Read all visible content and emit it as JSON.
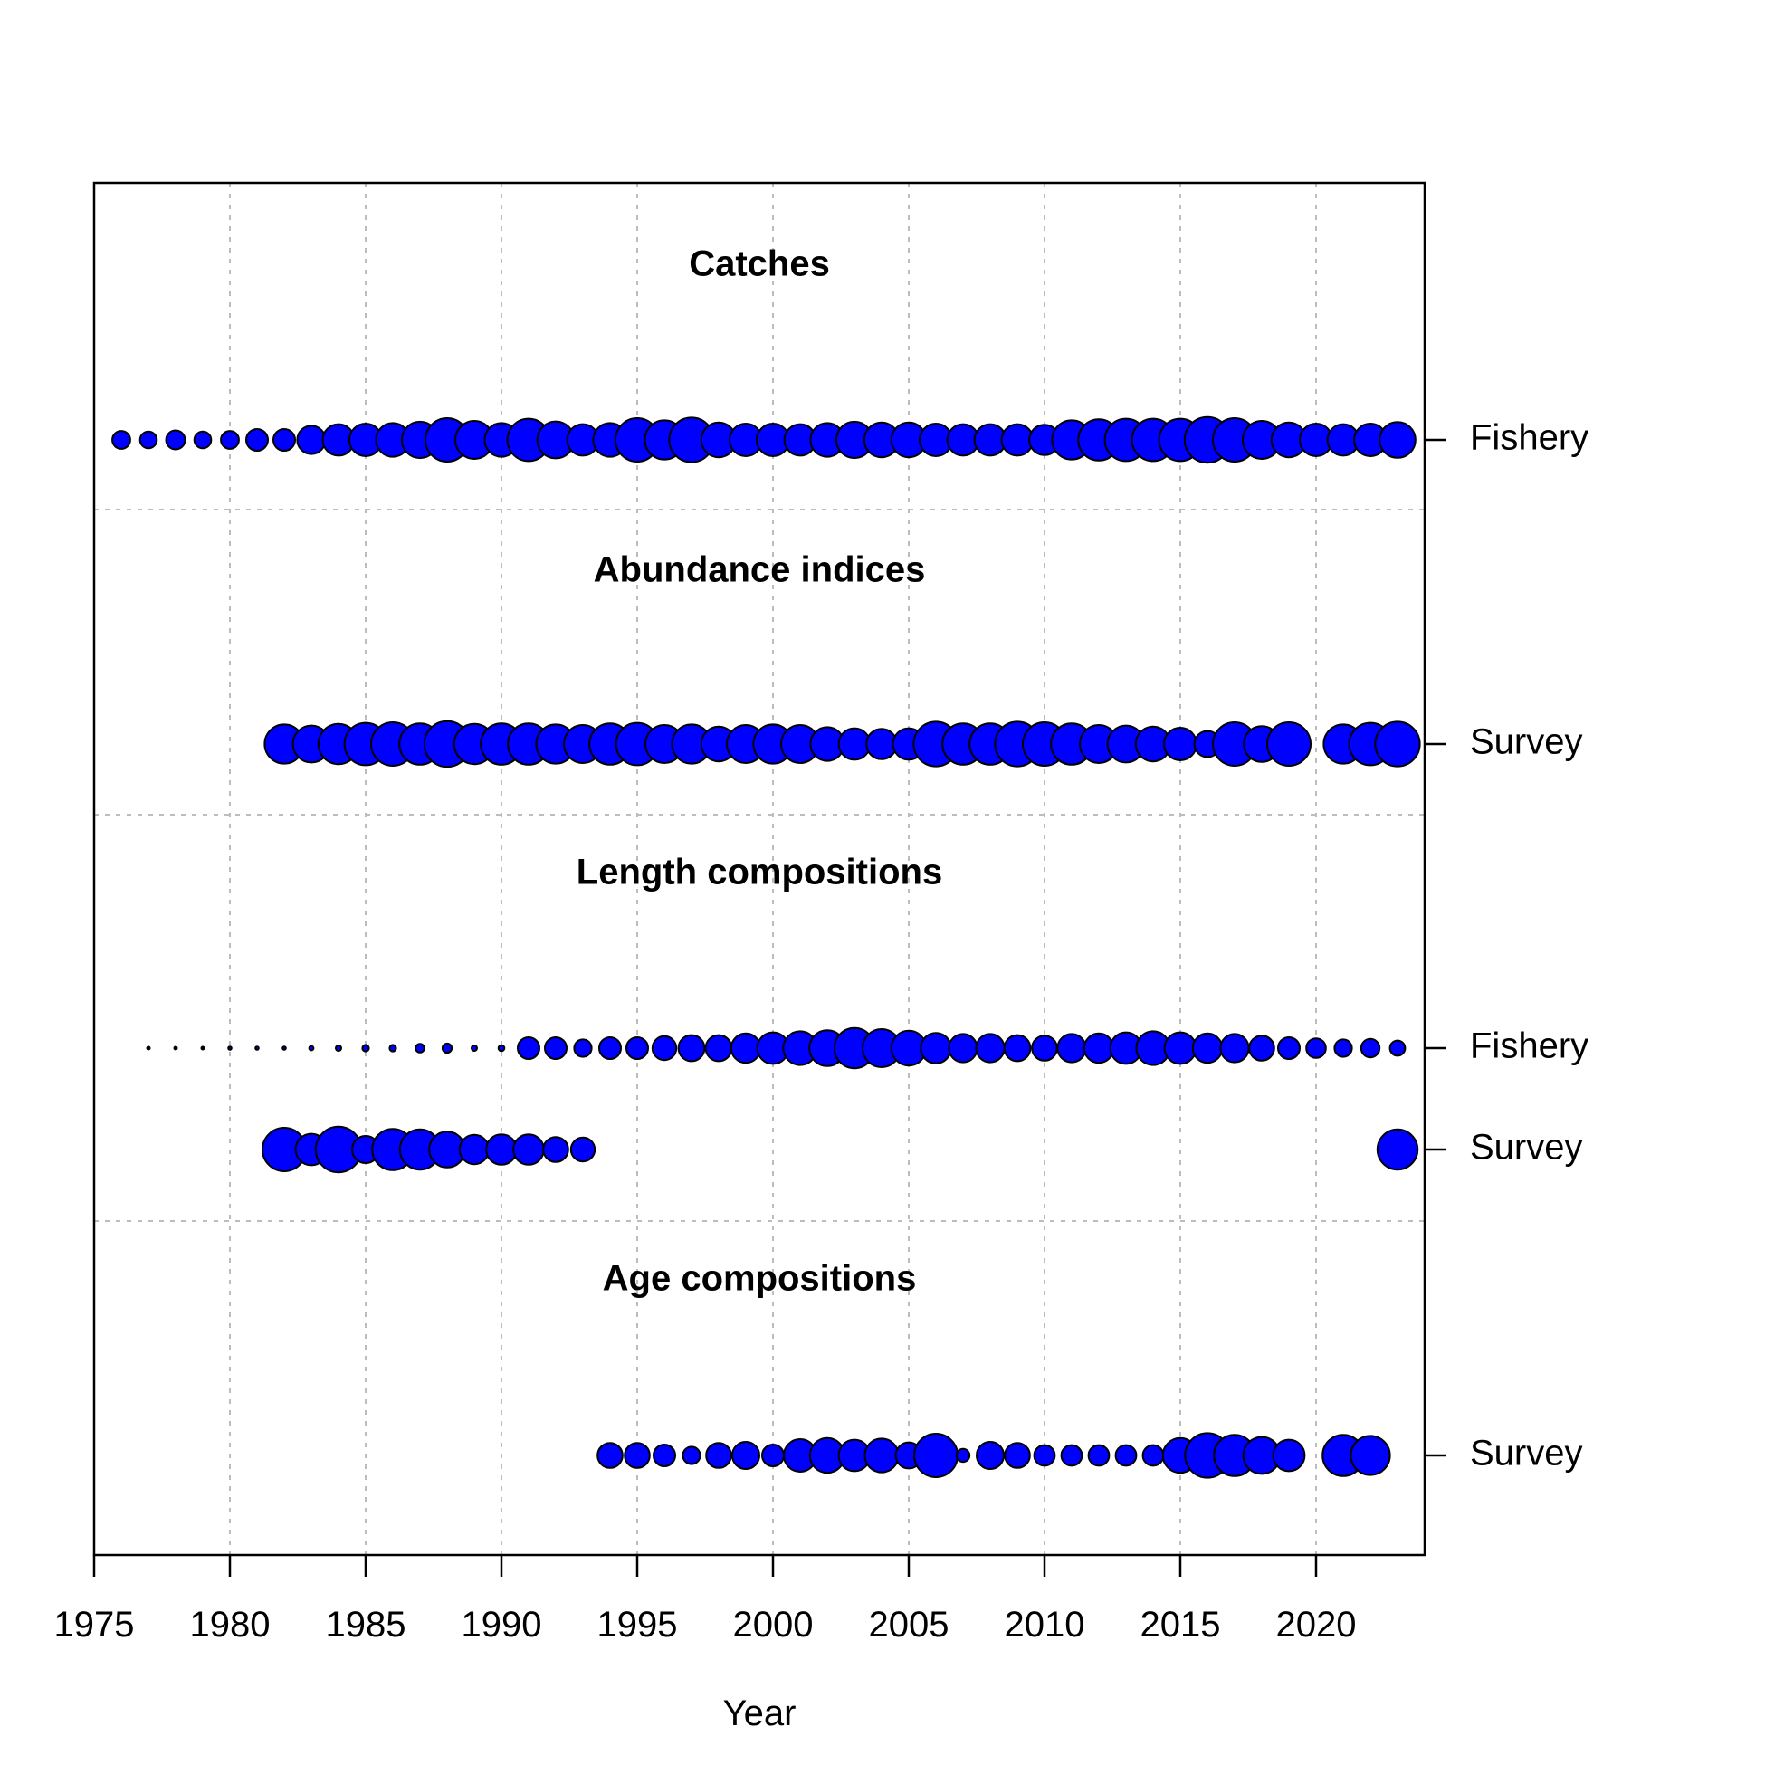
{
  "chart_data": {
    "type": "scatter",
    "xlabel": "Year",
    "xlim": [
      1975,
      2024
    ],
    "x_ticks": [
      1975,
      1980,
      1985,
      1990,
      1995,
      2000,
      2005,
      2010,
      2015,
      2020
    ],
    "grid": true,
    "bubble_color": "#0000ff",
    "bubble_stroke": "#000000",
    "sections": [
      {
        "title": "Catches",
        "rows": [
          {
            "label": "Fishery",
            "points": [
              {
                "year": 1976,
                "size": 0.33
              },
              {
                "year": 1977,
                "size": 0.31
              },
              {
                "year": 1978,
                "size": 0.35
              },
              {
                "year": 1979,
                "size": 0.31
              },
              {
                "year": 1980,
                "size": 0.33
              },
              {
                "year": 1981,
                "size": 0.4
              },
              {
                "year": 1982,
                "size": 0.4
              },
              {
                "year": 1983,
                "size": 0.52
              },
              {
                "year": 1984,
                "size": 0.58
              },
              {
                "year": 1985,
                "size": 0.6
              },
              {
                "year": 1986,
                "size": 0.62
              },
              {
                "year": 1987,
                "size": 0.67
              },
              {
                "year": 1988,
                "size": 0.8
              },
              {
                "year": 1989,
                "size": 0.7
              },
              {
                "year": 1990,
                "size": 0.62
              },
              {
                "year": 1991,
                "size": 0.78
              },
              {
                "year": 1992,
                "size": 0.68
              },
              {
                "year": 1993,
                "size": 0.58
              },
              {
                "year": 1994,
                "size": 0.62
              },
              {
                "year": 1995,
                "size": 0.8
              },
              {
                "year": 1996,
                "size": 0.72
              },
              {
                "year": 1997,
                "size": 0.82
              },
              {
                "year": 1998,
                "size": 0.64
              },
              {
                "year": 1999,
                "size": 0.6
              },
              {
                "year": 2000,
                "size": 0.6
              },
              {
                "year": 2001,
                "size": 0.58
              },
              {
                "year": 2002,
                "size": 0.62
              },
              {
                "year": 2003,
                "size": 0.67
              },
              {
                "year": 2004,
                "size": 0.64
              },
              {
                "year": 2005,
                "size": 0.64
              },
              {
                "year": 2006,
                "size": 0.6
              },
              {
                "year": 2007,
                "size": 0.58
              },
              {
                "year": 2008,
                "size": 0.58
              },
              {
                "year": 2009,
                "size": 0.58
              },
              {
                "year": 2010,
                "size": 0.56
              },
              {
                "year": 2011,
                "size": 0.72
              },
              {
                "year": 2012,
                "size": 0.76
              },
              {
                "year": 2013,
                "size": 0.78
              },
              {
                "year": 2014,
                "size": 0.78
              },
              {
                "year": 2015,
                "size": 0.78
              },
              {
                "year": 2016,
                "size": 0.84
              },
              {
                "year": 2017,
                "size": 0.8
              },
              {
                "year": 2018,
                "size": 0.7
              },
              {
                "year": 2019,
                "size": 0.64
              },
              {
                "year": 2020,
                "size": 0.6
              },
              {
                "year": 2021,
                "size": 0.58
              },
              {
                "year": 2022,
                "size": 0.6
              },
              {
                "year": 2023,
                "size": 0.66
              }
            ]
          }
        ]
      },
      {
        "title": "Abundance indices",
        "rows": [
          {
            "label": "Survey",
            "points": [
              {
                "year": 1982,
                "size": 0.72
              },
              {
                "year": 1983,
                "size": 0.68
              },
              {
                "year": 1984,
                "size": 0.74
              },
              {
                "year": 1985,
                "size": 0.78
              },
              {
                "year": 1986,
                "size": 0.8
              },
              {
                "year": 1987,
                "size": 0.76
              },
              {
                "year": 1988,
                "size": 0.84
              },
              {
                "year": 1989,
                "size": 0.74
              },
              {
                "year": 1990,
                "size": 0.76
              },
              {
                "year": 1991,
                "size": 0.76
              },
              {
                "year": 1992,
                "size": 0.72
              },
              {
                "year": 1993,
                "size": 0.7
              },
              {
                "year": 1994,
                "size": 0.76
              },
              {
                "year": 1995,
                "size": 0.78
              },
              {
                "year": 1996,
                "size": 0.7
              },
              {
                "year": 1997,
                "size": 0.72
              },
              {
                "year": 1998,
                "size": 0.64
              },
              {
                "year": 1999,
                "size": 0.7
              },
              {
                "year": 2000,
                "size": 0.72
              },
              {
                "year": 2001,
                "size": 0.7
              },
              {
                "year": 2002,
                "size": 0.62
              },
              {
                "year": 2003,
                "size": 0.58
              },
              {
                "year": 2004,
                "size": 0.56
              },
              {
                "year": 2005,
                "size": 0.58
              },
              {
                "year": 2006,
                "size": 0.82
              },
              {
                "year": 2007,
                "size": 0.76
              },
              {
                "year": 2008,
                "size": 0.76
              },
              {
                "year": 2009,
                "size": 0.82
              },
              {
                "year": 2010,
                "size": 0.8
              },
              {
                "year": 2011,
                "size": 0.76
              },
              {
                "year": 2012,
                "size": 0.7
              },
              {
                "year": 2013,
                "size": 0.68
              },
              {
                "year": 2014,
                "size": 0.64
              },
              {
                "year": 2015,
                "size": 0.6
              },
              {
                "year": 2016,
                "size": 0.48
              },
              {
                "year": 2017,
                "size": 0.8
              },
              {
                "year": 2018,
                "size": 0.66
              },
              {
                "year": 2019,
                "size": 0.8
              },
              {
                "year": 2021,
                "size": 0.72
              },
              {
                "year": 2022,
                "size": 0.78
              },
              {
                "year": 2023,
                "size": 0.82
              }
            ]
          }
        ]
      },
      {
        "title": "Length compositions",
        "rows": [
          {
            "label": "Fishery",
            "points": [
              {
                "year": 1977,
                "size": 0.04
              },
              {
                "year": 1978,
                "size": 0.04
              },
              {
                "year": 1979,
                "size": 0.05
              },
              {
                "year": 1980,
                "size": 0.06
              },
              {
                "year": 1981,
                "size": 0.06
              },
              {
                "year": 1982,
                "size": 0.06
              },
              {
                "year": 1983,
                "size": 0.08
              },
              {
                "year": 1984,
                "size": 0.1
              },
              {
                "year": 1985,
                "size": 0.12
              },
              {
                "year": 1986,
                "size": 0.12
              },
              {
                "year": 1987,
                "size": 0.16
              },
              {
                "year": 1988,
                "size": 0.17
              },
              {
                "year": 1989,
                "size": 0.1
              },
              {
                "year": 1990,
                "size": 0.11
              },
              {
                "year": 1991,
                "size": 0.4
              },
              {
                "year": 1992,
                "size": 0.4
              },
              {
                "year": 1993,
                "size": 0.32
              },
              {
                "year": 1994,
                "size": 0.4
              },
              {
                "year": 1995,
                "size": 0.4
              },
              {
                "year": 1996,
                "size": 0.44
              },
              {
                "year": 1997,
                "size": 0.48
              },
              {
                "year": 1998,
                "size": 0.48
              },
              {
                "year": 1999,
                "size": 0.54
              },
              {
                "year": 2000,
                "size": 0.58
              },
              {
                "year": 2001,
                "size": 0.62
              },
              {
                "year": 2002,
                "size": 0.66
              },
              {
                "year": 2003,
                "size": 0.74
              },
              {
                "year": 2004,
                "size": 0.7
              },
              {
                "year": 2005,
                "size": 0.64
              },
              {
                "year": 2006,
                "size": 0.56
              },
              {
                "year": 2007,
                "size": 0.52
              },
              {
                "year": 2008,
                "size": 0.52
              },
              {
                "year": 2009,
                "size": 0.48
              },
              {
                "year": 2010,
                "size": 0.46
              },
              {
                "year": 2011,
                "size": 0.52
              },
              {
                "year": 2012,
                "size": 0.54
              },
              {
                "year": 2013,
                "size": 0.58
              },
              {
                "year": 2014,
                "size": 0.62
              },
              {
                "year": 2015,
                "size": 0.58
              },
              {
                "year": 2016,
                "size": 0.54
              },
              {
                "year": 2017,
                "size": 0.52
              },
              {
                "year": 2018,
                "size": 0.46
              },
              {
                "year": 2019,
                "size": 0.4
              },
              {
                "year": 2020,
                "size": 0.36
              },
              {
                "year": 2021,
                "size": 0.32
              },
              {
                "year": 2022,
                "size": 0.34
              },
              {
                "year": 2023,
                "size": 0.28
              }
            ]
          },
          {
            "label": "Survey",
            "points": [
              {
                "year": 1982,
                "size": 0.8
              },
              {
                "year": 1983,
                "size": 0.58
              },
              {
                "year": 1984,
                "size": 0.84
              },
              {
                "year": 1985,
                "size": 0.5
              },
              {
                "year": 1986,
                "size": 0.76
              },
              {
                "year": 1987,
                "size": 0.74
              },
              {
                "year": 1988,
                "size": 0.66
              },
              {
                "year": 1989,
                "size": 0.54
              },
              {
                "year": 1990,
                "size": 0.56
              },
              {
                "year": 1991,
                "size": 0.56
              },
              {
                "year": 1992,
                "size": 0.46
              },
              {
                "year": 1993,
                "size": 0.44
              },
              {
                "year": 2023,
                "size": 0.74
              }
            ]
          }
        ]
      },
      {
        "title": "Age compositions",
        "rows": [
          {
            "label": "Survey",
            "points": [
              {
                "year": 1994,
                "size": 0.46
              },
              {
                "year": 1995,
                "size": 0.46
              },
              {
                "year": 1996,
                "size": 0.4
              },
              {
                "year": 1997,
                "size": 0.32
              },
              {
                "year": 1998,
                "size": 0.46
              },
              {
                "year": 1999,
                "size": 0.5
              },
              {
                "year": 2000,
                "size": 0.4
              },
              {
                "year": 2001,
                "size": 0.6
              },
              {
                "year": 2002,
                "size": 0.64
              },
              {
                "year": 2003,
                "size": 0.58
              },
              {
                "year": 2004,
                "size": 0.62
              },
              {
                "year": 2005,
                "size": 0.48
              },
              {
                "year": 2006,
                "size": 0.8
              },
              {
                "year": 2007,
                "size": 0.24
              },
              {
                "year": 2008,
                "size": 0.5
              },
              {
                "year": 2009,
                "size": 0.46
              },
              {
                "year": 2010,
                "size": 0.38
              },
              {
                "year": 2011,
                "size": 0.38
              },
              {
                "year": 2012,
                "size": 0.38
              },
              {
                "year": 2013,
                "size": 0.38
              },
              {
                "year": 2014,
                "size": 0.38
              },
              {
                "year": 2015,
                "size": 0.64
              },
              {
                "year": 2016,
                "size": 0.82
              },
              {
                "year": 2017,
                "size": 0.76
              },
              {
                "year": 2018,
                "size": 0.68
              },
              {
                "year": 2019,
                "size": 0.58
              },
              {
                "year": 2021,
                "size": 0.76
              },
              {
                "year": 2022,
                "size": 0.72
              }
            ]
          }
        ]
      }
    ]
  }
}
